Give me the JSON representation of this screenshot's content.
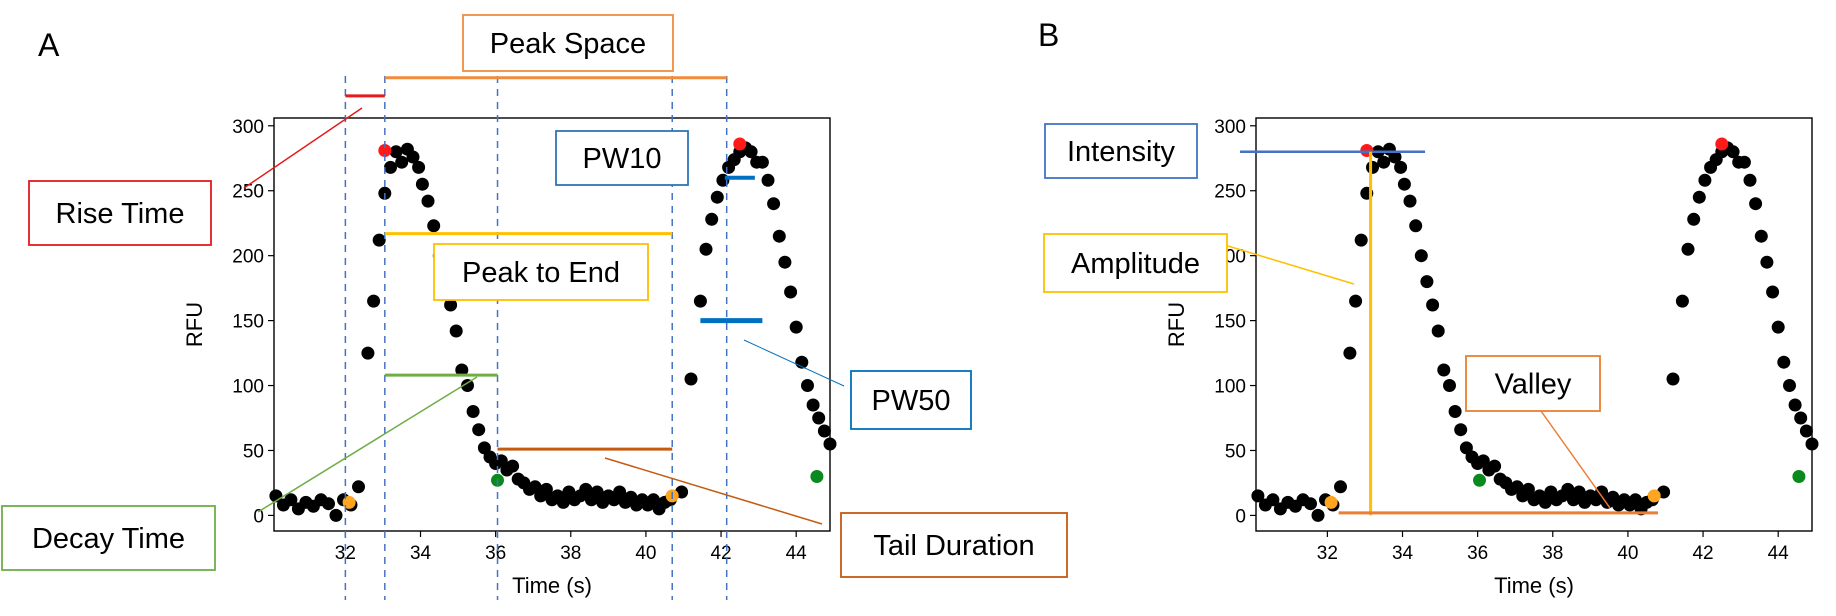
{
  "colors": {
    "marker": "#000000",
    "peak": "#ff1a1a",
    "onset": "#ffa51f",
    "end": "#0a8a1e",
    "guide": "#4472c4",
    "rise": "#e41a1c",
    "peak_space": "#f08c3c",
    "peak_to_end": "#ffc000",
    "decay": "#70ad47",
    "tail": "#c55a11",
    "pw": "#0070c0",
    "pw10_box": "#2e75b6",
    "intensity": "#4472c4",
    "amplitude": "#ffc000",
    "valley": "#ed7d31"
  },
  "chart_data": [
    {
      "type": "scatter",
      "panel_label": "A",
      "xlabel": "Time (s)",
      "ylabel": "RFU",
      "xlim": [
        30.1,
        44.9
      ],
      "ylim": [
        -12,
        306
      ],
      "xticks": [
        "32",
        "34",
        "36",
        "38",
        "40",
        "42",
        "44"
      ],
      "yticks": [
        "0",
        "50",
        "100",
        "150",
        "200",
        "250",
        "300"
      ],
      "points": [
        [
          30.15,
          15
        ],
        [
          30.35,
          8
        ],
        [
          30.55,
          12
        ],
        [
          30.75,
          5
        ],
        [
          30.95,
          10
        ],
        [
          31.15,
          7
        ],
        [
          31.35,
          12
        ],
        [
          31.55,
          9
        ],
        [
          31.75,
          0
        ],
        [
          31.95,
          12
        ],
        [
          32.15,
          8
        ],
        [
          32.35,
          22
        ],
        [
          32.6,
          125
        ],
        [
          32.75,
          165
        ],
        [
          32.9,
          212
        ],
        [
          33.05,
          248
        ],
        [
          33.2,
          268
        ],
        [
          33.35,
          280
        ],
        [
          33.5,
          272
        ],
        [
          33.65,
          282
        ],
        [
          33.8,
          276
        ],
        [
          33.95,
          268
        ],
        [
          34.05,
          255
        ],
        [
          34.2,
          242
        ],
        [
          34.35,
          223
        ],
        [
          34.5,
          200
        ],
        [
          34.65,
          180
        ],
        [
          34.8,
          162
        ],
        [
          34.95,
          142
        ],
        [
          35.1,
          112
        ],
        [
          35.25,
          100
        ],
        [
          35.4,
          80
        ],
        [
          35.55,
          66
        ],
        [
          35.7,
          52
        ],
        [
          35.85,
          45
        ],
        [
          36.0,
          40
        ],
        [
          36.15,
          42
        ],
        [
          36.3,
          35
        ],
        [
          36.45,
          38
        ],
        [
          36.6,
          28
        ],
        [
          36.75,
          25
        ],
        [
          36.9,
          20
        ],
        [
          37.05,
          22
        ],
        [
          37.2,
          15
        ],
        [
          37.35,
          20
        ],
        [
          37.5,
          12
        ],
        [
          37.65,
          15
        ],
        [
          37.8,
          10
        ],
        [
          37.95,
          18
        ],
        [
          38.1,
          12
        ],
        [
          38.25,
          15
        ],
        [
          38.4,
          20
        ],
        [
          38.55,
          12
        ],
        [
          38.7,
          18
        ],
        [
          38.85,
          10
        ],
        [
          39.0,
          15
        ],
        [
          39.15,
          12
        ],
        [
          39.3,
          18
        ],
        [
          39.45,
          10
        ],
        [
          39.6,
          14
        ],
        [
          39.75,
          8
        ],
        [
          39.9,
          12
        ],
        [
          40.05,
          8
        ],
        [
          40.2,
          12
        ],
        [
          40.35,
          5
        ],
        [
          40.5,
          10
        ],
        [
          40.65,
          12
        ],
        [
          40.95,
          18
        ],
        [
          41.2,
          105
        ],
        [
          41.45,
          165
        ],
        [
          41.6,
          205
        ],
        [
          41.75,
          228
        ],
        [
          41.9,
          245
        ],
        [
          42.05,
          258
        ],
        [
          42.2,
          268
        ],
        [
          42.35,
          274
        ],
        [
          42.5,
          280
        ],
        [
          42.65,
          283
        ],
        [
          42.8,
          280
        ],
        [
          42.95,
          272
        ],
        [
          43.1,
          272
        ],
        [
          43.25,
          258
        ],
        [
          43.4,
          240
        ],
        [
          43.55,
          215
        ],
        [
          43.7,
          195
        ],
        [
          43.85,
          172
        ],
        [
          44.0,
          145
        ],
        [
          44.15,
          118
        ],
        [
          44.3,
          100
        ],
        [
          44.45,
          85
        ],
        [
          44.6,
          75
        ],
        [
          44.75,
          65
        ],
        [
          44.9,
          55
        ]
      ],
      "highlights": [
        {
          "kind": "peak",
          "x": 33.05,
          "y": 281
        },
        {
          "kind": "peak",
          "x": 42.5,
          "y": 286
        },
        {
          "kind": "onset",
          "x": 32.1,
          "y": 10
        },
        {
          "kind": "onset",
          "x": 40.7,
          "y": 15
        },
        {
          "kind": "end",
          "x": 36.05,
          "y": 27
        },
        {
          "kind": "end",
          "x": 44.55,
          "y": 30
        }
      ],
      "guide_lines_x": [
        32.0,
        33.05,
        36.05,
        40.7,
        42.15
      ],
      "annotations": [
        {
          "label": "Rise Time",
          "from": 32.0,
          "to": 33.05,
          "y": 323,
          "color_key": "rise"
        },
        {
          "label": "Peak Space",
          "from": 33.05,
          "to": 42.15,
          "y": 337,
          "color_key": "peak_space"
        },
        {
          "label": "Peak to End",
          "from": 33.05,
          "to": 40.7,
          "y": 217,
          "color_key": "peak_to_end"
        },
        {
          "label": "Decay Time",
          "from": 33.05,
          "to": 36.05,
          "y": 108,
          "color_key": "decay"
        },
        {
          "label": "Tail Duration",
          "from": 36.05,
          "to": 40.7,
          "y": 51,
          "color_key": "tail"
        },
        {
          "label": "PW10",
          "from": 42.1,
          "to": 42.9,
          "y": 260,
          "color_key": "pw"
        },
        {
          "label": "PW50",
          "from": 41.45,
          "to": 43.1,
          "y": 150,
          "color_key": "pw"
        }
      ]
    },
    {
      "type": "scatter",
      "panel_label": "B",
      "xlabel": "Time (s)",
      "ylabel": "RFU",
      "xlim": [
        30.1,
        44.9
      ],
      "ylim": [
        -12,
        306
      ],
      "xticks": [
        "32",
        "34",
        "36",
        "38",
        "40",
        "42",
        "44"
      ],
      "yticks": [
        "0",
        "50",
        "100",
        "150",
        "200",
        "250",
        "300"
      ],
      "points": "same as panel A",
      "annotations": [
        {
          "label": "Intensity",
          "from": 29.9,
          "to": 34.6,
          "y": 280,
          "color_key": "intensity"
        },
        {
          "label": "Amplitude",
          "x": 33.15,
          "from_y": 0,
          "to_y": 280,
          "color_key": "amplitude"
        },
        {
          "label": "Valley",
          "from": 32.3,
          "to": 40.8,
          "y": 2,
          "color_key": "valley"
        }
      ]
    }
  ],
  "labels": {
    "panel_a": "A",
    "panel_b": "B",
    "rise_time": "Rise Time",
    "peak_space": "Peak Space",
    "peak_to_end": "Peak to End",
    "decay_time": "Decay Time",
    "tail_duration": "Tail Duration",
    "pw10": "PW10",
    "pw50": "PW50",
    "intensity": "Intensity",
    "amplitude": "Amplitude",
    "valley": "Valley"
  }
}
